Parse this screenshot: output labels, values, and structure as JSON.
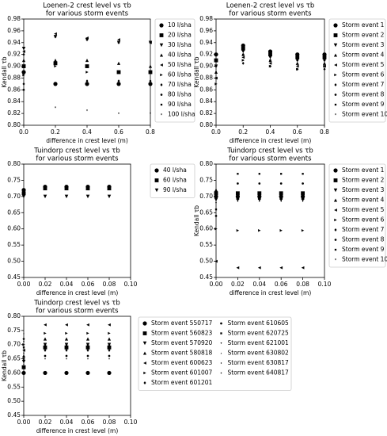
{
  "chart_data": [
    {
      "type": "scatter",
      "title": "Loenen-2 crest level vs τb",
      "subtitle": "for various storm events",
      "xlabel": "difference in crest level (m)",
      "ylabel": "Kendall τb",
      "color": "#000000",
      "x": [
        0,
        0.2,
        0.4,
        0.6,
        0.8
      ],
      "xlim": [
        0,
        0.8
      ],
      "xticks": [
        {
          "value": 0,
          "label": "0.0"
        },
        0.2,
        0.4,
        0.6,
        0.8
      ],
      "ylim": [
        0.8,
        0.98
      ],
      "yticks": [
        {
          "value": 0.8,
          "label": "0.80"
        },
        0.82,
        0.84,
        0.86,
        0.88,
        {
          "value": 0.9,
          "label": "0.90"
        },
        0.92,
        0.94,
        0.96,
        0.98
      ],
      "series": [
        {
          "name": "10 l/sha",
          "values": [
            0.89,
            0.87,
            0.87,
            0.87,
            0.87
          ]
        },
        {
          "name": "20 l/sha",
          "values": [
            0.9,
            0.905,
            0.9,
            0.89,
            0.89
          ]
        },
        {
          "name": "30 l/sha",
          "values": [
            0.93,
            0.95,
            0.945,
            0.94,
            0.94
          ]
        },
        {
          "name": "40 l/sha",
          "values": [
            0.91,
            0.91,
            0.91,
            0.905,
            0.9
          ]
        },
        {
          "name": "50 l/sha",
          "values": [
            0.925,
            0.955,
            0.948,
            0.945,
            0.94
          ]
        },
        {
          "name": "60 l/sha",
          "values": [
            0.885,
            0.9,
            0.89,
            0.89,
            0.89
          ]
        },
        {
          "name": "70 l/sha",
          "values": [
            0.87,
            0.87,
            0.875,
            0.875,
            0.875
          ]
        },
        {
          "name": "80 l/sha",
          "values": [
            0.92,
            0.95,
            0.945,
            0.94,
            0.94
          ]
        },
        {
          "name": "90 l/sha",
          "values": [
            0.86,
            0.87,
            0.87,
            0.87,
            0.87
          ]
        },
        {
          "name": "100 l/sha",
          "values": [
            0.86,
            0.83,
            0.825,
            0.82,
            0.82
          ]
        }
      ]
    },
    {
      "type": "scatter",
      "title": "Loenen-2 crest level vs τb",
      "subtitle": "for various storm events",
      "xlabel": "difference in crest level (m)",
      "ylabel": "Kendall τb",
      "color": "#000000",
      "x": [
        0,
        0.2,
        0.4,
        0.6,
        0.8
      ],
      "xlim": [
        0,
        0.8
      ],
      "xticks": [
        {
          "value": 0,
          "label": "0.0"
        },
        0.2,
        0.4,
        0.6,
        0.8
      ],
      "ylim": [
        0.8,
        0.98
      ],
      "yticks": [
        {
          "value": 0.8,
          "label": "0.80"
        },
        0.82,
        0.84,
        0.86,
        0.88,
        {
          "value": 0.9,
          "label": "0.90"
        },
        0.92,
        0.94,
        0.96,
        0.98
      ],
      "series": [
        {
          "name": "Storm event 1",
          "values": [
            0.92,
            0.935,
            0.925,
            0.92,
            0.92
          ]
        },
        {
          "name": "Storm event 2",
          "values": [
            0.91,
            0.93,
            0.92,
            0.915,
            0.915
          ]
        },
        {
          "name": "Storm event 3",
          "values": [
            0.9,
            0.925,
            0.915,
            0.91,
            0.91
          ]
        },
        {
          "name": "Storm event 4",
          "values": [
            0.89,
            0.92,
            0.91,
            0.905,
            0.905
          ]
        },
        {
          "name": "Storm event 5",
          "values": [
            0.88,
            0.915,
            0.905,
            0.9,
            0.9
          ]
        },
        {
          "name": "Storm event 6",
          "values": [
            0.87,
            0.91,
            0.9,
            0.895,
            0.9
          ]
        },
        {
          "name": "Storm event 7",
          "values": [
            0.88,
            0.905,
            0.9,
            0.895,
            0.895
          ]
        },
        {
          "name": "Storm event 8",
          "values": [
            0.9,
            0.92,
            0.91,
            0.91,
            0.91
          ]
        },
        {
          "name": "Storm event 9",
          "values": [
            0.91,
            0.93,
            0.92,
            0.92,
            0.915
          ]
        },
        {
          "name": "Storm event 10",
          "values": [
            0.89,
            0.91,
            0.905,
            0.9,
            0.9
          ]
        }
      ]
    },
    {
      "type": "scatter",
      "title": "Tuindorp crest level vs τb",
      "subtitle": "for various storm events",
      "xlabel": "difference in crest level (m)",
      "color": "#000000",
      "x": [
        0,
        0.02,
        0.04,
        0.06,
        0.08
      ],
      "xlim": [
        0,
        0.1
      ],
      "xticks": [
        {
          "value": 0,
          "label": "0.00"
        },
        0.02,
        0.04,
        0.06,
        0.08,
        {
          "value": 0.1,
          "label": "0.10"
        }
      ],
      "ylim": [
        0.45,
        0.8
      ],
      "yticks": [
        0.45,
        {
          "value": 0.5,
          "label": "0.50"
        },
        0.55,
        {
          "value": 0.6,
          "label": "0.60"
        },
        0.65,
        {
          "value": 0.7,
          "label": "0.70"
        },
        0.75,
        {
          "value": 0.8,
          "label": "0.80"
        }
      ],
      "series": [
        {
          "name": "40 l/sha",
          "values": [
            0.72,
            0.73,
            0.73,
            0.73,
            0.73
          ]
        },
        {
          "name": "60 l/sha",
          "values": [
            0.71,
            0.725,
            0.725,
            0.725,
            0.725
          ]
        },
        {
          "name": "90 l/sha",
          "values": [
            0.7,
            0.7,
            0.7,
            0.7,
            0.7
          ]
        }
      ]
    },
    {
      "type": "scatter",
      "title": "Tuindorp crest level vs τb",
      "subtitle": "for various storm events",
      "xlabel": "difference in crest level (m)",
      "ylabel": "Kendall τb",
      "color": "#000000",
      "x": [
        0,
        0.02,
        0.04,
        0.06,
        0.08
      ],
      "xlim": [
        0,
        0.1
      ],
      "xticks": [
        {
          "value": 0,
          "label": "0.00"
        },
        0.02,
        0.04,
        0.06,
        0.08,
        {
          "value": 0.1,
          "label": "0.10"
        }
      ],
      "ylim": [
        0.45,
        0.8
      ],
      "yticks": [
        0.45,
        {
          "value": 0.5,
          "label": "0.50"
        },
        0.55,
        {
          "value": 0.6,
          "label": "0.60"
        },
        0.65,
        {
          "value": 0.7,
          "label": "0.70"
        },
        0.75,
        {
          "value": 0.8,
          "label": "0.80"
        }
      ],
      "series": [
        {
          "name": "Storm event 1",
          "values": [
            0.7,
            0.7,
            0.7,
            0.7,
            0.7
          ]
        },
        {
          "name": "Storm event 2",
          "values": [
            0.71,
            0.71,
            0.71,
            0.71,
            0.71
          ]
        },
        {
          "name": "Storm event 3",
          "values": [
            0.69,
            0.69,
            0.69,
            0.69,
            0.69
          ]
        },
        {
          "name": "Storm event 4",
          "values": [
            0.72,
            0.695,
            0.695,
            0.695,
            0.695
          ]
        },
        {
          "name": "Storm event 5",
          "values": [
            0.5,
            0.48,
            0.48,
            0.48,
            0.48
          ]
        },
        {
          "name": "Storm event 6",
          "values": [
            0.6,
            0.595,
            0.595,
            0.595,
            0.595
          ]
        },
        {
          "name": "Storm event 7",
          "values": [
            0.7,
            0.705,
            0.705,
            0.705,
            0.705
          ]
        },
        {
          "name": "Storm event 8",
          "values": [
            0.64,
            0.74,
            0.74,
            0.74,
            0.74
          ]
        },
        {
          "name": "Storm event 9",
          "values": [
            0.66,
            0.77,
            0.77,
            0.77,
            0.77
          ]
        },
        {
          "name": "Storm event 10",
          "values": [
            0.68,
            0.685,
            0.685,
            0.685,
            0.685
          ]
        }
      ]
    },
    {
      "type": "scatter",
      "title": "Tuindorp crest level vs τb",
      "subtitle": "for various storm events",
      "xlabel": "difference in crest level (m)",
      "ylabel": "Kendall τb",
      "color": "#000000",
      "x": [
        0,
        0.02,
        0.04,
        0.06,
        0.08
      ],
      "xlim": [
        0,
        0.1
      ],
      "xticks": [
        {
          "value": 0,
          "label": "0.00"
        },
        0.02,
        0.04,
        0.06,
        0.08,
        {
          "value": 0.1,
          "label": "0.10"
        }
      ],
      "ylim": [
        0.45,
        0.8
      ],
      "yticks": [
        0.45,
        {
          "value": 0.5,
          "label": "0.50"
        },
        0.55,
        {
          "value": 0.6,
          "label": "0.60"
        },
        0.65,
        {
          "value": 0.7,
          "label": "0.70"
        },
        0.75,
        {
          "value": 0.8,
          "label": "0.80"
        }
      ],
      "series": [
        {
          "name": "Storm event 550717",
          "values": [
            0.6,
            0.6,
            0.6,
            0.6,
            0.6
          ]
        },
        {
          "name": "Storm event 560823",
          "values": [
            0.62,
            0.69,
            0.69,
            0.69,
            0.69
          ]
        },
        {
          "name": "Storm event 570920",
          "values": [
            0.64,
            0.7,
            0.7,
            0.7,
            0.7
          ]
        },
        {
          "name": "Storm event 580818",
          "values": [
            0.66,
            0.72,
            0.72,
            0.72,
            0.72
          ]
        },
        {
          "name": "Storm event 600623",
          "values": [
            0.68,
            0.77,
            0.77,
            0.77,
            0.77
          ]
        },
        {
          "name": "Storm event 601007",
          "values": [
            0.7,
            0.74,
            0.74,
            0.74,
            0.74
          ]
        },
        {
          "name": "Storm event 601201",
          "values": [
            0.72,
            0.68,
            0.68,
            0.68,
            0.68
          ]
        },
        {
          "name": "Storm event 610605",
          "values": [
            0.65,
            0.66,
            0.66,
            0.66,
            0.66
          ]
        },
        {
          "name": "Storm event 620725",
          "values": [
            0.69,
            0.7,
            0.7,
            0.7,
            0.7
          ]
        },
        {
          "name": "Storm event 621001",
          "values": [
            0.71,
            0.69,
            0.69,
            0.69,
            0.69
          ]
        },
        {
          "name": "Storm event 630802",
          "values": [
            0.74,
            0.72,
            0.72,
            0.72,
            0.72
          ]
        },
        {
          "name": "Storm event 630817",
          "values": [
            0.63,
            0.65,
            0.65,
            0.65,
            0.65
          ]
        },
        {
          "name": "Storm event 640817",
          "values": [
            0.67,
            0.68,
            0.68,
            0.68,
            0.68
          ]
        }
      ]
    }
  ]
}
